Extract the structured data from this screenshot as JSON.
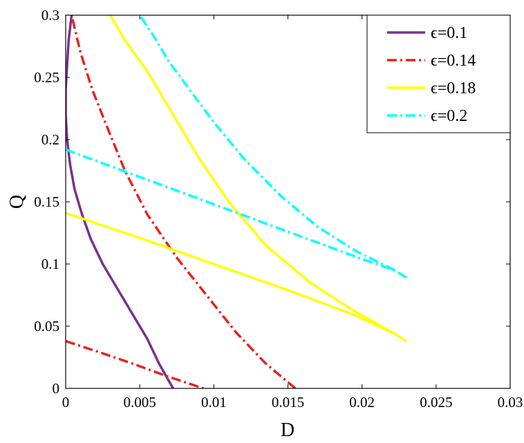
{
  "chart_data": {
    "type": "line",
    "xlabel": "D",
    "ylabel": "Q",
    "xlim": [
      0,
      0.03
    ],
    "ylim": [
      0,
      0.3
    ],
    "x_ticks": [
      "0",
      "0.005",
      "0.01",
      "0.015",
      "0.02",
      "0.025",
      "0.03"
    ],
    "y_ticks": [
      "0",
      "0.05",
      "0.1",
      "0.15",
      "0.2",
      "0.25",
      "0.3"
    ],
    "grid": false,
    "legend_position": "top-right",
    "series": [
      {
        "name": "ϵ=0.1",
        "color": "#7B2F8E",
        "dash": "solid",
        "segments": [
          [
            [
              0.00725,
              0.0
            ],
            [
              0.0063,
              0.02
            ],
            [
              0.0055,
              0.04
            ],
            [
              0.0045,
              0.06
            ],
            [
              0.0035,
              0.08
            ],
            [
              0.0025,
              0.1
            ],
            [
              0.0017,
              0.12
            ],
            [
              0.0011,
              0.14
            ],
            [
              0.0006,
              0.16
            ],
            [
              0.0003,
              0.18
            ],
            [
              0.0001,
              0.2
            ],
            [
              0.0,
              0.22
            ],
            [
              0.0,
              0.24
            ],
            [
              0.0001,
              0.26
            ],
            [
              0.0002,
              0.28
            ],
            [
              0.0004,
              0.3
            ]
          ]
        ]
      },
      {
        "name": "ϵ=0.14",
        "color": "#E8231F",
        "dash": "dashdot",
        "segments": [
          [
            [
              0.0155,
              0.0
            ],
            [
              0.0135,
              0.02
            ],
            [
              0.0115,
              0.045
            ],
            [
              0.0095,
              0.075
            ],
            [
              0.0075,
              0.105
            ],
            [
              0.0055,
              0.14
            ],
            [
              0.004,
              0.175
            ],
            [
              0.0028,
              0.21
            ],
            [
              0.0018,
              0.24
            ],
            [
              0.001,
              0.27
            ],
            [
              0.0004,
              0.3
            ]
          ],
          [
            [
              0.0,
              0.038
            ],
            [
              0.0023,
              0.029
            ],
            [
              0.0045,
              0.02
            ],
            [
              0.0068,
              0.01
            ],
            [
              0.0093,
              0.0
            ]
          ]
        ]
      },
      {
        "name": "ϵ=0.18",
        "color": "#FFFF00",
        "dash": "solid",
        "segments": [
          [
            [
              0.0222,
              0.044
            ],
            [
              0.0195,
              0.062
            ],
            [
              0.0165,
              0.085
            ],
            [
              0.0135,
              0.115
            ],
            [
              0.011,
              0.15
            ],
            [
              0.009,
              0.185
            ],
            [
              0.007,
              0.225
            ],
            [
              0.0055,
              0.255
            ],
            [
              0.004,
              0.28
            ],
            [
              0.003,
              0.3
            ]
          ],
          [
            [
              0.0,
              0.141
            ],
            [
              0.005,
              0.121
            ],
            [
              0.01,
              0.1
            ],
            [
              0.015,
              0.079
            ],
            [
              0.0195,
              0.059
            ],
            [
              0.0222,
              0.044
            ],
            [
              0.023,
              0.038
            ]
          ]
        ]
      },
      {
        "name": "ϵ=0.2",
        "color": "#00FFFF",
        "dash": "dashdot",
        "segments": [
          [
            [
              0.0222,
              0.095
            ],
            [
              0.0195,
              0.111
            ],
            [
              0.017,
              0.13
            ],
            [
              0.0145,
              0.155
            ],
            [
              0.012,
              0.185
            ],
            [
              0.01,
              0.214
            ],
            [
              0.0085,
              0.238
            ],
            [
              0.007,
              0.262
            ],
            [
              0.006,
              0.282
            ],
            [
              0.005,
              0.3
            ]
          ],
          [
            [
              0.0,
              0.192
            ],
            [
              0.005,
              0.17
            ],
            [
              0.01,
              0.148
            ],
            [
              0.015,
              0.126
            ],
            [
              0.02,
              0.104
            ],
            [
              0.0222,
              0.095
            ],
            [
              0.023,
              0.089
            ]
          ]
        ]
      }
    ]
  }
}
